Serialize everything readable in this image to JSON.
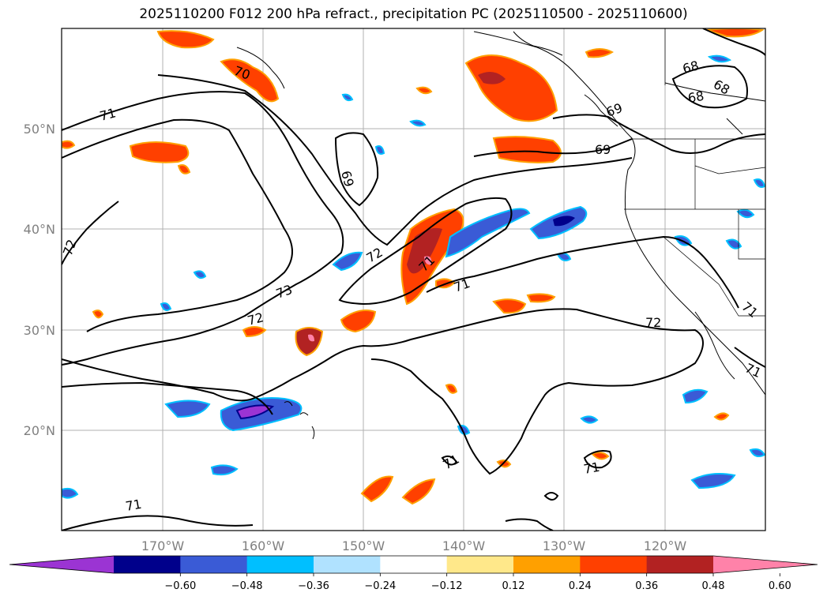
{
  "title": "2025110200 F012 200 hPa refract., precipitation PC (2025110500 - 2025110600)",
  "map": {
    "lon_range": [
      -180,
      -110
    ],
    "lat_range": [
      10,
      60
    ],
    "lat_labels": [
      "20°N",
      "30°N",
      "40°N",
      "50°N"
    ],
    "lon_labels": [
      "170°W",
      "160°W",
      "150°W",
      "140°W",
      "130°W",
      "120°W"
    ],
    "contour_labels": [
      "71",
      "70",
      "72",
      "69",
      "73",
      "72",
      "72",
      "71",
      "71",
      "72",
      "71",
      "71",
      "71",
      "68",
      "68",
      "68",
      "69",
      "69",
      "71",
      "71"
    ]
  },
  "colorbar": {
    "ticks": [
      "−0.60",
      "−0.48",
      "−0.36",
      "−0.24",
      "−0.12",
      "0.12",
      "0.24",
      "0.36",
      "0.48",
      "0.60"
    ],
    "colors": [
      "#9b34d3",
      "#00008b",
      "#3a5bd6",
      "#00bfff",
      "#b0e2ff",
      "#ffffff",
      "#ffe88a",
      "#ffa000",
      "#ff4000",
      "#b22222",
      "#ff82a9"
    ]
  }
}
